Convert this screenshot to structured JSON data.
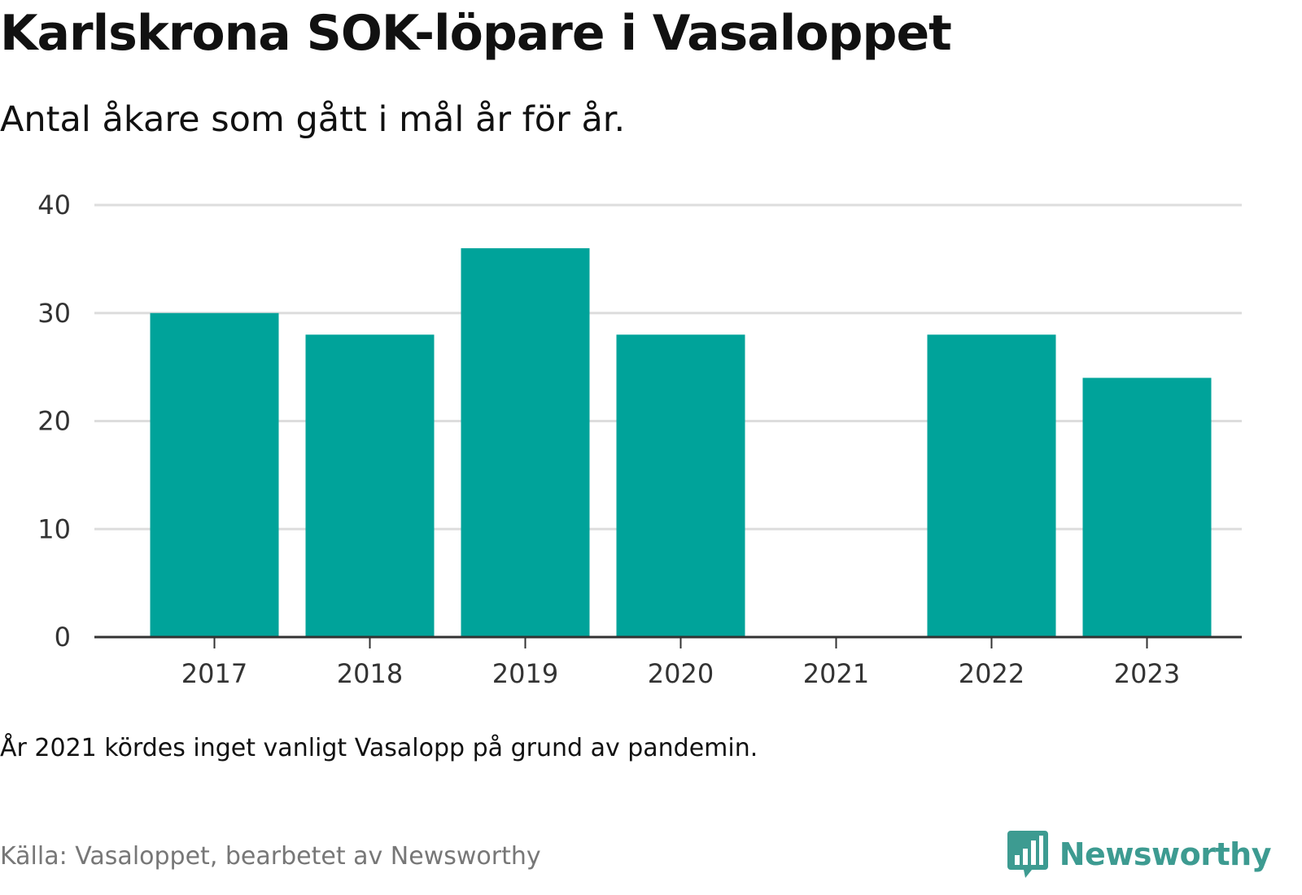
{
  "colors": {
    "bar": "#00a39a",
    "grid": "#dddddd",
    "axis": "#333333",
    "brand": "#3d9b91"
  },
  "note": "År 2021 kördes inget vanligt Vasalopp på grund av pandemin.",
  "source": "Källa: Vasaloppet, bearbetet av Newsworthy",
  "brand": {
    "name": "Newsworthy",
    "icon": "newsworthy-bar-chart-bubble-icon"
  },
  "chart_data": {
    "type": "bar",
    "title": "Karlskrona SOK-löpare i Vasaloppet",
    "subtitle": "Antal åkare som gått i mål år för år.",
    "xlabel": "",
    "ylabel": "",
    "categories": [
      "2017",
      "2018",
      "2019",
      "2020",
      "2021",
      "2022",
      "2023"
    ],
    "values": [
      30,
      28,
      36,
      28,
      null,
      28,
      24
    ],
    "ylim": [
      0,
      40
    ],
    "yticks": [
      0,
      10,
      20,
      30,
      40
    ],
    "grid": true,
    "legend": "none"
  }
}
